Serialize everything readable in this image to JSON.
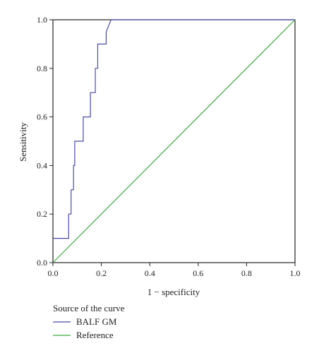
{
  "chart_data": {
    "type": "line",
    "xlabel": "1 − specificity",
    "ylabel": "Sensitivity",
    "xlim": [
      0,
      1
    ],
    "ylim": [
      0,
      1
    ],
    "xticks": [
      "0.0",
      "0.2",
      "0.4",
      "0.6",
      "0.8",
      "1.0"
    ],
    "yticks": [
      "0.0",
      "0.2",
      "0.4",
      "0.6",
      "0.8",
      "1.0"
    ],
    "grid": false,
    "legend": {
      "title": "Source of the curve",
      "placement": "bottom-left"
    },
    "series": [
      {
        "name": "BALF GM",
        "color": "#4a4aa8",
        "x": [
          0.0,
          0.065,
          0.065,
          0.075,
          0.075,
          0.085,
          0.085,
          0.09,
          0.09,
          0.125,
          0.125,
          0.155,
          0.155,
          0.175,
          0.175,
          0.185,
          0.185,
          0.22,
          0.22,
          0.24,
          1.0
        ],
        "y": [
          0.1,
          0.1,
          0.2,
          0.2,
          0.3,
          0.3,
          0.4,
          0.4,
          0.5,
          0.5,
          0.6,
          0.6,
          0.7,
          0.7,
          0.8,
          0.8,
          0.9,
          0.9,
          0.95,
          1.0,
          1.0
        ]
      },
      {
        "name": "Reference",
        "color": "#3cab3c",
        "x": [
          0.0,
          1.0
        ],
        "y": [
          0.0,
          1.0
        ]
      }
    ]
  }
}
